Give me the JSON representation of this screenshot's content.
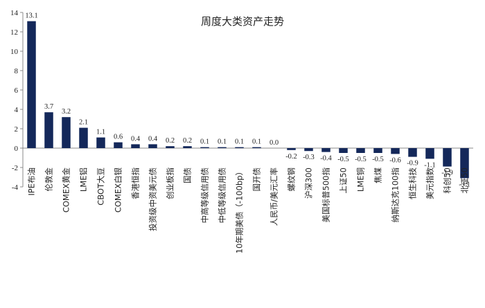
{
  "chart_data": {
    "type": "bar",
    "title": "周度大类资产走势",
    "xlabel": "",
    "ylabel": "",
    "ylim": [
      -4,
      14
    ],
    "yticks": [
      -4,
      -2,
      0,
      2,
      4,
      6,
      8,
      10,
      12,
      14
    ],
    "grid": false,
    "legend": "none",
    "bar_color": "#14285a",
    "categories": [
      "IPE布油",
      "伦敦金",
      "COMEX黄金",
      "LME铝",
      "CBOT大豆",
      "COMEX白银",
      "香港恒指",
      "投资级中资美元债",
      "创业板指",
      "国债",
      "中高等级信用债",
      "中低等级信用债",
      "10年期美债（-100bp）",
      "国开债",
      "人民币/美元汇率",
      "螺纹钢",
      "沪深300",
      "美国标普500指",
      "上证50",
      "LME铜",
      "焦煤",
      "纳斯达克100指",
      "恒生科技",
      "美元指数",
      "科创50",
      "北证50"
    ],
    "values": [
      13.1,
      3.7,
      3.2,
      2.1,
      1.1,
      0.6,
      0.4,
      0.4,
      0.2,
      0.2,
      0.1,
      0.1,
      0.1,
      0.1,
      0.0,
      -0.2,
      -0.3,
      -0.4,
      -0.5,
      -0.5,
      -0.5,
      -0.6,
      -0.9,
      -1.1,
      -1.9,
      -3.1
    ],
    "labels": [
      "13.1",
      "3.7",
      "3.2",
      "2.1",
      "1.1",
      "0.6",
      "0.4",
      "0.4",
      "0.2",
      "0.2",
      "0.1",
      "0.1",
      "0.1",
      "0.1",
      "0.0",
      "-0.2",
      "-0.3",
      "-0.4",
      "-0.5",
      "-0.5",
      "-0.5",
      "-0.6",
      "-0.9",
      "-1.1",
      "-1.9",
      "-3.1"
    ]
  }
}
